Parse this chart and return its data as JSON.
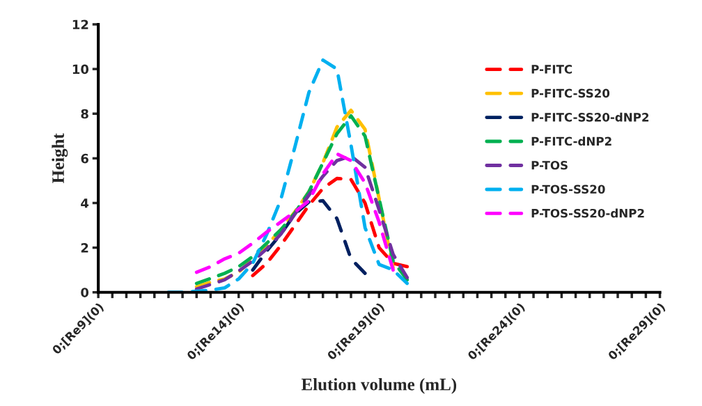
{
  "chart_data": {
    "type": "line",
    "xlabel": "Elution volume (mL)",
    "ylabel": "Height",
    "ylim": [
      0,
      12
    ],
    "categories": [
      "0;[Re9](0)",
      null,
      null,
      null,
      null,
      null,
      null,
      null,
      null,
      null,
      "0;[Re14](0)",
      null,
      null,
      null,
      null,
      null,
      null,
      null,
      null,
      null,
      "0;[Re19](0)",
      null,
      null,
      null,
      null,
      null,
      null,
      null,
      null,
      null,
      "0;[Re24](0)",
      null,
      null,
      null,
      null,
      null,
      null,
      null,
      null,
      null,
      "0;[Re29](0)"
    ],
    "yticks": [
      0,
      2,
      4,
      6,
      8,
      10,
      12
    ],
    "grid": false,
    "legend": "right",
    "line_style": "dashed",
    "marker": "none",
    "series": [
      {
        "name": "P-FITC",
        "color": "#ff0000",
        "values": [
          null,
          null,
          null,
          null,
          null,
          null,
          null,
          null,
          null,
          null,
          null,
          0.75,
          1.3,
          2.1,
          3.0,
          3.9,
          4.65,
          5.1,
          5.05,
          4.0,
          2.0,
          1.3,
          1.15,
          null,
          null,
          null,
          null,
          null,
          null,
          null,
          null,
          null,
          null,
          null,
          null,
          null,
          null,
          null,
          null,
          null,
          null
        ]
      },
      {
        "name": "P-FITC-SS20",
        "color": "#ffc000",
        "values": [
          null,
          null,
          null,
          null,
          null,
          null,
          null,
          0.25,
          0.45,
          0.6,
          0.9,
          1.5,
          2.1,
          2.8,
          3.6,
          4.5,
          5.8,
          7.4,
          8.15,
          7.3,
          4.2,
          1.1,
          null,
          null,
          null,
          null,
          null,
          null,
          null,
          null,
          null,
          null,
          null,
          null,
          null,
          null,
          null,
          null,
          null,
          null,
          null
        ]
      },
      {
        "name": "P-FITC-SS20-dNP2",
        "color": "#002060",
        "values": [
          null,
          null,
          null,
          null,
          null,
          null,
          null,
          null,
          null,
          null,
          null,
          1.0,
          1.85,
          2.6,
          3.5,
          4.05,
          4.1,
          3.3,
          1.5,
          0.85,
          null,
          null,
          null,
          null,
          null,
          null,
          null,
          null,
          null,
          null,
          null,
          null,
          null,
          null,
          null,
          null,
          null,
          null,
          null,
          null,
          null
        ]
      },
      {
        "name": "P-FITC-dNP2",
        "color": "#00b050",
        "values": [
          null,
          null,
          null,
          null,
          null,
          null,
          null,
          0.4,
          0.62,
          0.85,
          1.15,
          1.6,
          2.2,
          2.8,
          3.55,
          4.5,
          5.8,
          7.1,
          7.9,
          7.0,
          4.2,
          1.4,
          0.56,
          null,
          null,
          null,
          null,
          null,
          null,
          null,
          null,
          null,
          null,
          null,
          null,
          null,
          null,
          null,
          null,
          null,
          null
        ]
      },
      {
        "name": "P-TOS",
        "color": "#7030a0",
        "values": [
          null,
          null,
          null,
          null,
          null,
          null,
          null,
          0.15,
          0.35,
          0.56,
          0.95,
          1.4,
          1.95,
          2.6,
          3.5,
          4.35,
          5.2,
          5.9,
          6.1,
          5.6,
          3.7,
          1.7,
          0.66,
          null,
          null,
          null,
          null,
          null,
          null,
          null,
          null,
          null,
          null,
          null,
          null,
          null,
          null,
          null,
          null,
          null,
          null
        ]
      },
      {
        "name": "P-TOS-SS20",
        "color": "#00b0f0",
        "values": [
          null,
          null,
          null,
          null,
          null,
          0.0,
          0.0,
          0.05,
          0.1,
          0.2,
          0.6,
          1.3,
          2.6,
          4.15,
          6.5,
          8.95,
          10.4,
          10.0,
          6.6,
          2.9,
          1.25,
          1.0,
          0.4,
          null,
          null,
          null,
          null,
          null,
          null,
          null,
          null,
          null,
          null,
          null,
          null,
          null,
          null,
          null,
          null,
          null,
          null
        ]
      },
      {
        "name": "P-TOS-SS20-dNP2",
        "color": "#ff00ff",
        "values": [
          null,
          null,
          null,
          null,
          null,
          null,
          null,
          0.9,
          1.15,
          1.5,
          1.75,
          2.2,
          2.7,
          3.15,
          3.6,
          4.1,
          5.3,
          6.2,
          5.9,
          4.9,
          3.15,
          1.0,
          null,
          null,
          null,
          null,
          null,
          null,
          null,
          null,
          null,
          null,
          null,
          null,
          null,
          null,
          null,
          null,
          null,
          null,
          null
        ]
      }
    ]
  }
}
